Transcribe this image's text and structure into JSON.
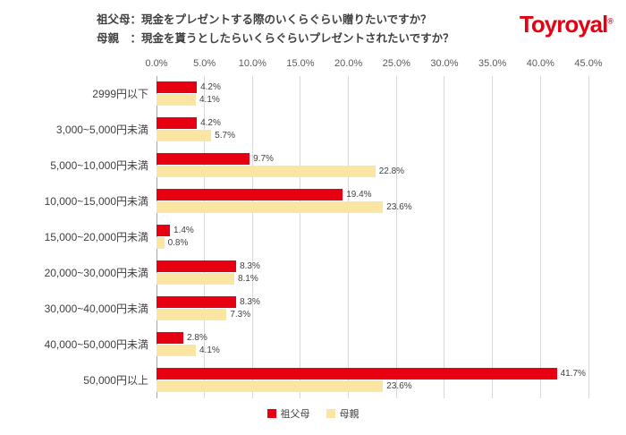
{
  "header": {
    "title_line1": "祖父母：現金をプレゼントする際のいくらぐらい贈りたいですか？",
    "title_line2": "母親　：現金を貰うとしたらいくらぐらいプレゼントされたいですか？",
    "logo_text": "Toyroyal",
    "logo_reg": "®"
  },
  "colors": {
    "brand_red": "#e60012",
    "bar_yellow": "#fbe5a3",
    "gridline": "#d9d9d9",
    "text": "#404040"
  },
  "chart_data": {
    "type": "bar",
    "orientation": "horizontal",
    "title": "祖父母：現金をプレゼントする際のいくらぐらい贈りたいですか？ / 母親：現金を貰うとしたらいくらぐらいプレゼントされたいですか？",
    "categories": [
      "2999円以下",
      "3,000~5,000円未満",
      "5,000~10,000円未満",
      "10,000~15,000円未満",
      "15,000~20,000円未満",
      "20,000~30,000円未満",
      "30,000~40,000円未満",
      "40,000~50,000円未満",
      "50,000円以上"
    ],
    "series": [
      {
        "name": "祖父母",
        "color": "#e60012",
        "values": [
          4.2,
          4.2,
          9.7,
          19.4,
          1.4,
          8.3,
          8.3,
          2.8,
          41.7
        ],
        "labels": [
          "4.2%",
          "4.2%",
          "9.7%",
          "19.4%",
          "1.4%",
          "8.3%",
          "8.3%",
          "2.8%",
          "41.7%"
        ]
      },
      {
        "name": "母親",
        "color": "#fbe5a3",
        "values": [
          4.1,
          5.7,
          22.8,
          23.6,
          0.8,
          8.1,
          7.3,
          4.1,
          23.6
        ],
        "labels": [
          "4.1%",
          "5.7%",
          "22.8%",
          "23.6%",
          "0.8%",
          "8.1%",
          "7.3%",
          "4.1%",
          "23.6%"
        ]
      }
    ],
    "x_ticks": [
      "0.0%",
      "5.0%",
      "10.0%",
      "15.0%",
      "20.0%",
      "25.0%",
      "30.0%",
      "35.0%",
      "40.0%",
      "45.0%"
    ],
    "xmax": 45,
    "xlabel": "",
    "ylabel": "",
    "grid": true,
    "legend_position": "bottom"
  }
}
